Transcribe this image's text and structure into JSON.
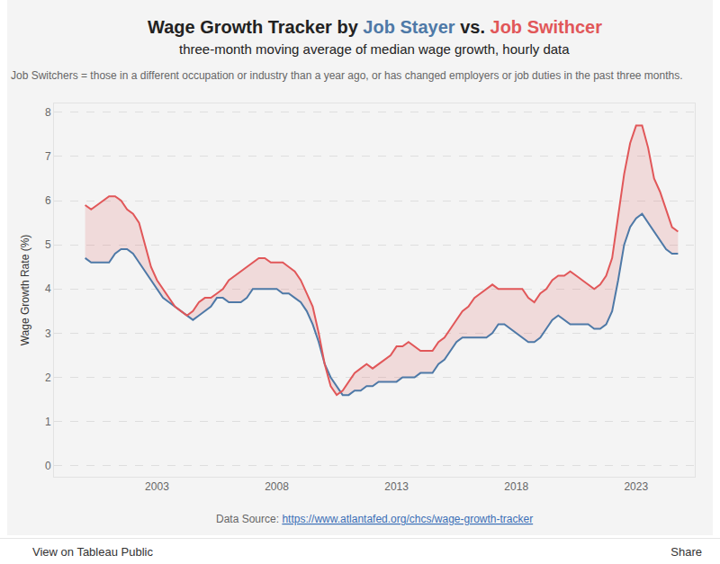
{
  "chart_data": {
    "type": "line",
    "title": "Wage Growth Tracker by Job Stayer vs. Job Swithcer",
    "subtitle": "three-month moving average of median wage growth, hourly data",
    "note": "Job Switchers = those in a different occupation or industry than a year ago, or has changed employers or job duties in the past three months.",
    "y_label": "Wage Growth Rate (%)",
    "source_label": "Data Source:",
    "source_url": "https://www.atlantafed.org/chcs/wage-growth-tracker",
    "x": [
      2000.0,
      2000.25,
      2000.5,
      2000.75,
      2001.0,
      2001.25,
      2001.5,
      2001.75,
      2002.0,
      2002.25,
      2002.5,
      2002.75,
      2003.0,
      2003.25,
      2003.5,
      2003.75,
      2004.0,
      2004.25,
      2004.5,
      2004.75,
      2005.0,
      2005.25,
      2005.5,
      2005.75,
      2006.0,
      2006.25,
      2006.5,
      2006.75,
      2007.0,
      2007.25,
      2007.5,
      2007.75,
      2008.0,
      2008.25,
      2008.5,
      2008.75,
      2009.0,
      2009.25,
      2009.5,
      2009.75,
      2010.0,
      2010.25,
      2010.5,
      2010.75,
      2011.0,
      2011.25,
      2011.5,
      2011.75,
      2012.0,
      2012.25,
      2012.5,
      2012.75,
      2013.0,
      2013.25,
      2013.5,
      2013.75,
      2014.0,
      2014.25,
      2014.5,
      2014.75,
      2015.0,
      2015.25,
      2015.5,
      2015.75,
      2016.0,
      2016.25,
      2016.5,
      2016.75,
      2017.0,
      2017.25,
      2017.5,
      2017.75,
      2018.0,
      2018.25,
      2018.5,
      2018.75,
      2019.0,
      2019.25,
      2019.5,
      2019.75,
      2020.0,
      2020.25,
      2020.5,
      2020.75,
      2021.0,
      2021.25,
      2021.5,
      2021.75,
      2022.0,
      2022.25,
      2022.5,
      2022.75,
      2023.0,
      2023.25,
      2023.5,
      2023.75,
      2024.0,
      2024.25,
      2024.5,
      2024.75
    ],
    "series": [
      {
        "name": "Job Stayer",
        "color": "#4e79a7",
        "values": [
          4.7,
          4.6,
          4.6,
          4.6,
          4.6,
          4.8,
          4.9,
          4.9,
          4.8,
          4.6,
          4.4,
          4.2,
          4.0,
          3.8,
          3.7,
          3.6,
          3.5,
          3.4,
          3.3,
          3.4,
          3.5,
          3.6,
          3.8,
          3.8,
          3.7,
          3.7,
          3.7,
          3.8,
          4.0,
          4.0,
          4.0,
          4.0,
          4.0,
          3.9,
          3.9,
          3.8,
          3.7,
          3.5,
          3.2,
          2.8,
          2.3,
          2.0,
          1.8,
          1.6,
          1.6,
          1.7,
          1.7,
          1.8,
          1.8,
          1.9,
          1.9,
          1.9,
          1.9,
          2.0,
          2.0,
          2.0,
          2.1,
          2.1,
          2.1,
          2.3,
          2.4,
          2.6,
          2.8,
          2.9,
          2.9,
          2.9,
          2.9,
          2.9,
          3.0,
          3.2,
          3.2,
          3.1,
          3.0,
          2.9,
          2.8,
          2.8,
          2.9,
          3.1,
          3.3,
          3.4,
          3.3,
          3.2,
          3.2,
          3.2,
          3.2,
          3.1,
          3.1,
          3.2,
          3.5,
          4.2,
          5.0,
          5.4,
          5.6,
          5.7,
          5.5,
          5.3,
          5.1,
          4.9,
          4.8,
          4.8
        ]
      },
      {
        "name": "Job Swithcer",
        "color": "#e15759",
        "values": [
          5.9,
          5.8,
          5.9,
          6.0,
          6.1,
          6.1,
          6.0,
          5.8,
          5.7,
          5.5,
          5.0,
          4.5,
          4.2,
          4.0,
          3.8,
          3.6,
          3.5,
          3.4,
          3.5,
          3.7,
          3.8,
          3.8,
          3.9,
          4.0,
          4.2,
          4.3,
          4.4,
          4.5,
          4.6,
          4.7,
          4.7,
          4.6,
          4.6,
          4.6,
          4.5,
          4.4,
          4.2,
          3.9,
          3.6,
          3.0,
          2.3,
          1.8,
          1.6,
          1.7,
          1.9,
          2.1,
          2.2,
          2.3,
          2.2,
          2.3,
          2.4,
          2.5,
          2.7,
          2.7,
          2.8,
          2.7,
          2.6,
          2.6,
          2.6,
          2.8,
          2.9,
          3.1,
          3.3,
          3.5,
          3.6,
          3.8,
          3.9,
          4.0,
          4.1,
          4.0,
          4.0,
          4.0,
          4.0,
          4.0,
          3.8,
          3.7,
          3.9,
          4.0,
          4.2,
          4.3,
          4.3,
          4.4,
          4.3,
          4.2,
          4.1,
          4.0,
          4.1,
          4.3,
          4.7,
          5.7,
          6.6,
          7.3,
          7.7,
          7.7,
          7.2,
          6.5,
          6.2,
          5.8,
          5.4,
          5.3
        ]
      }
    ],
    "xlim": [
      1998.7,
      2025.45
    ],
    "xticks": [
      2003,
      2008,
      2013,
      2018,
      2023
    ],
    "ylim": [
      -0.25,
      8.2
    ],
    "yticks": [
      0,
      1,
      2,
      3,
      4,
      5,
      6,
      7,
      8
    ],
    "grid": true
  },
  "footer": {
    "left": "View on Tableau Public",
    "right": "Share"
  }
}
